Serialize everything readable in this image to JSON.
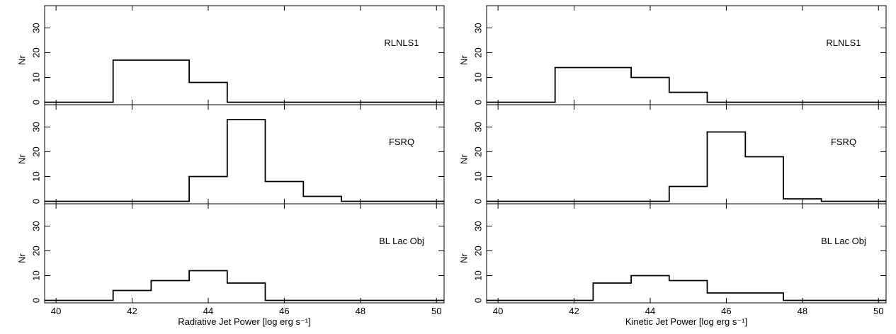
{
  "chart_data": [
    {
      "type": "histogram",
      "xlabel": "Radiative Jet Power [log erg s⁻¹]",
      "xlim": [
        39.7,
        50.2
      ],
      "x_ticks": [
        40,
        42,
        44,
        46,
        48,
        50
      ],
      "panels": [
        {
          "label": "RLNLS1",
          "ylabel": "Nr",
          "ylim": [
            -1,
            39
          ],
          "y_ticks": [
            0,
            10,
            20,
            30
          ],
          "steps": [
            [
              39.7,
              0
            ],
            [
              41.5,
              0
            ],
            [
              41.5,
              17
            ],
            [
              43.5,
              17
            ],
            [
              43.5,
              8
            ],
            [
              44.5,
              8
            ],
            [
              44.5,
              0
            ],
            [
              50.2,
              0
            ]
          ]
        },
        {
          "label": "FSRQ",
          "ylabel": "Nr",
          "ylim": [
            -1,
            39
          ],
          "y_ticks": [
            0,
            10,
            20,
            30
          ],
          "steps": [
            [
              39.7,
              0
            ],
            [
              43.5,
              0
            ],
            [
              43.5,
              10
            ],
            [
              44.5,
              10
            ],
            [
              44.5,
              33
            ],
            [
              45.5,
              33
            ],
            [
              45.5,
              8
            ],
            [
              46.5,
              8
            ],
            [
              46.5,
              2
            ],
            [
              47.5,
              2
            ],
            [
              47.5,
              0
            ],
            [
              50.2,
              0
            ]
          ]
        },
        {
          "label": "BL Lac Obj",
          "ylabel": "Nr",
          "ylim": [
            -1,
            39
          ],
          "y_ticks": [
            0,
            10,
            20,
            30
          ],
          "steps": [
            [
              39.7,
              0
            ],
            [
              41.5,
              0
            ],
            [
              41.5,
              4
            ],
            [
              42.5,
              4
            ],
            [
              42.5,
              8
            ],
            [
              43.5,
              8
            ],
            [
              43.5,
              12
            ],
            [
              44.5,
              12
            ],
            [
              44.5,
              7
            ],
            [
              45.5,
              7
            ],
            [
              45.5,
              0
            ],
            [
              50.2,
              0
            ]
          ]
        }
      ]
    },
    {
      "type": "histogram",
      "xlabel": "Kinetic Jet Power [log erg s⁻¹]",
      "xlim": [
        39.7,
        50.2
      ],
      "x_ticks": [
        40,
        42,
        44,
        46,
        48,
        50
      ],
      "panels": [
        {
          "label": "RLNLS1",
          "ylabel": "Nr",
          "ylim": [
            -1,
            39
          ],
          "y_ticks": [
            0,
            10,
            20,
            30
          ],
          "steps": [
            [
              39.7,
              0
            ],
            [
              41.5,
              0
            ],
            [
              41.5,
              14
            ],
            [
              43.5,
              14
            ],
            [
              43.5,
              10
            ],
            [
              44.5,
              10
            ],
            [
              44.5,
              4
            ],
            [
              45.5,
              4
            ],
            [
              45.5,
              0
            ],
            [
              50.2,
              0
            ]
          ]
        },
        {
          "label": "FSRQ",
          "ylabel": "Nr",
          "ylim": [
            -1,
            39
          ],
          "y_ticks": [
            0,
            10,
            20,
            30
          ],
          "steps": [
            [
              39.7,
              0
            ],
            [
              44.5,
              0
            ],
            [
              44.5,
              6
            ],
            [
              45.5,
              6
            ],
            [
              45.5,
              28
            ],
            [
              46.5,
              28
            ],
            [
              46.5,
              18
            ],
            [
              47.5,
              18
            ],
            [
              47.5,
              1
            ],
            [
              48.5,
              1
            ],
            [
              48.5,
              0
            ],
            [
              50.2,
              0
            ]
          ]
        },
        {
          "label": "BL Lac Obj",
          "ylabel": "Nr",
          "ylim": [
            -1,
            39
          ],
          "y_ticks": [
            0,
            10,
            20,
            30
          ],
          "steps": [
            [
              39.7,
              0
            ],
            [
              42.5,
              0
            ],
            [
              42.5,
              7
            ],
            [
              43.5,
              7
            ],
            [
              43.5,
              10
            ],
            [
              44.5,
              10
            ],
            [
              44.5,
              8
            ],
            [
              45.5,
              8
            ],
            [
              45.5,
              3
            ],
            [
              47.5,
              3
            ],
            [
              47.5,
              0
            ],
            [
              50.2,
              0
            ]
          ]
        }
      ]
    }
  ]
}
